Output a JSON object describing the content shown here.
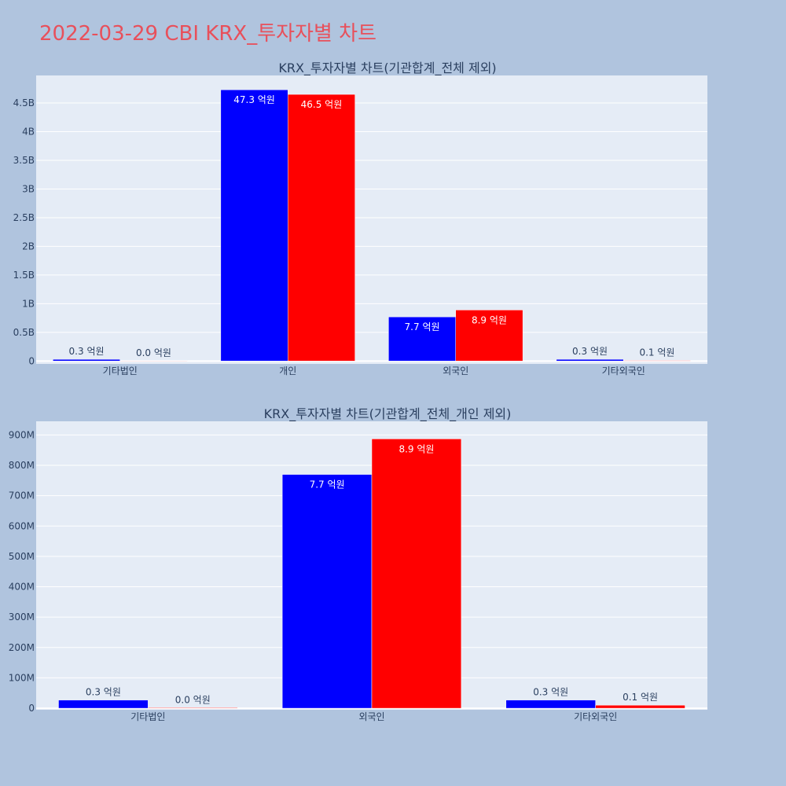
{
  "page": {
    "title": "2022-03-29 CBI KRX_투자자별 차트"
  },
  "colors": {
    "background": "#b0c4de",
    "plot_bg": "#e5ecf6",
    "title": "#e8505b",
    "series_a": "#0000ff",
    "series_b": "#ff0000"
  },
  "chart_data": [
    {
      "type": "bar",
      "title": "KRX_투자자별 차트(기관합계_전체 제외)",
      "xlabel": "",
      "ylabel": "",
      "categories": [
        "기타법인",
        "개인",
        "외국인",
        "기타외국인"
      ],
      "ylim": [
        -50000000,
        4980000000
      ],
      "yticks": [
        0,
        500000000,
        1000000000,
        1500000000,
        2000000000,
        2500000000,
        3000000000,
        3500000000,
        4000000000,
        4500000000
      ],
      "ytick_labels": [
        "0",
        "0.5B",
        "1B",
        "1.5B",
        "2B",
        "2.5B",
        "3B",
        "3.5B",
        "4B",
        "4.5B"
      ],
      "grid": true,
      "legend": "none",
      "series": [
        {
          "color": "#0000ff",
          "values": [
            30000000,
            4730000000,
            770000000,
            30000000
          ],
          "labels": [
            "0.3 억원",
            "47.3 억원",
            "7.7 억원",
            "0.3 억원"
          ]
        },
        {
          "color": "#ff0000",
          "values": [
            2000000,
            4650000000,
            890000000,
            10000000
          ],
          "labels": [
            "0.0 억원",
            "46.5 억원",
            "8.9 억원",
            "0.1 억원"
          ]
        }
      ]
    },
    {
      "type": "bar",
      "title": "KRX_투자자별 차트(기관합계_전체_개인 제외)",
      "xlabel": "",
      "ylabel": "",
      "categories": [
        "기타법인",
        "외국인",
        "기타외국인"
      ],
      "ylim": [
        -5000000,
        945000000
      ],
      "yticks": [
        0,
        100000000,
        200000000,
        300000000,
        400000000,
        500000000,
        600000000,
        700000000,
        800000000,
        900000000
      ],
      "ytick_labels": [
        "0",
        "100M",
        "200M",
        "300M",
        "400M",
        "500M",
        "600M",
        "700M",
        "800M",
        "900M"
      ],
      "grid": true,
      "legend": "none",
      "series": [
        {
          "color": "#0000ff",
          "values": [
            27000000,
            770000000,
            27000000
          ],
          "labels": [
            "0.3 억원",
            "7.7 억원",
            "0.3 억원"
          ]
        },
        {
          "color": "#ff0000",
          "values": [
            2000000,
            887000000,
            10000000
          ],
          "labels": [
            "0.0 억원",
            "8.9 억원",
            "0.1 억원"
          ]
        }
      ]
    }
  ]
}
